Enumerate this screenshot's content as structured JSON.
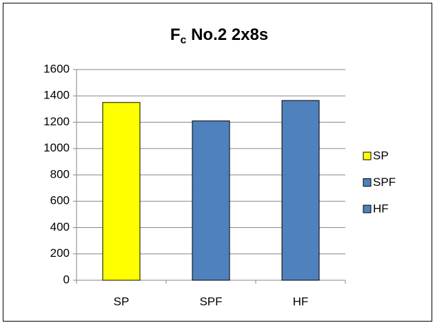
{
  "chart_data": {
    "type": "bar",
    "title": [
      "F",
      "c",
      " No.2 2x8s"
    ],
    "categories": [
      "SP",
      "SPF",
      "HF"
    ],
    "values": [
      1350,
      1210,
      1365
    ],
    "colors": [
      "#ffff00",
      "#4f81bd",
      "#4f81bd"
    ],
    "ylim": [
      0,
      1600
    ],
    "yticks": [
      0,
      200,
      400,
      600,
      800,
      1000,
      1200,
      1400,
      1600
    ],
    "grid": true,
    "legend": "right"
  }
}
